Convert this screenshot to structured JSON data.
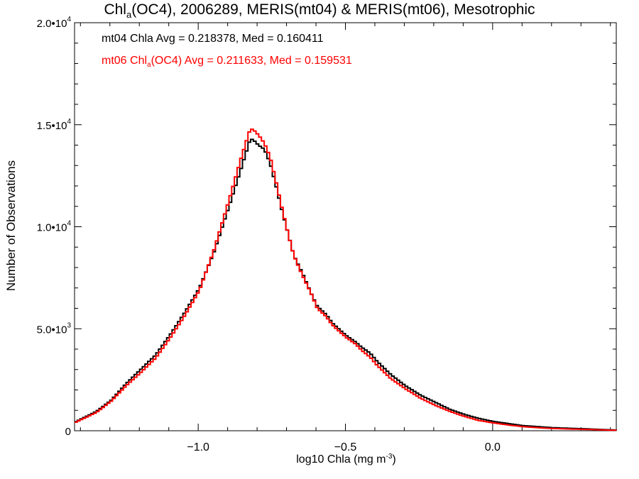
{
  "chart_data": {
    "type": "line",
    "title_parts": [
      "Chl",
      "a",
      "(OC4), 2006289, MERIS(mt04) & MERIS(mt06), Mesotrophic"
    ],
    "xlabel_parts": [
      "log10 Chla (mg m",
      "-3",
      ")"
    ],
    "ylabel": "Number of Observations",
    "xlim": [
      -1.42,
      0.42
    ],
    "ylim": [
      0,
      20000
    ],
    "xticks": [
      -1.0,
      -0.5,
      0.0
    ],
    "xtick_labels": [
      "−1.0",
      "−0.5",
      "0.0"
    ],
    "yticks": [
      0,
      5000,
      10000,
      15000,
      20000
    ],
    "ytick_labels": [
      {
        "base": "0",
        "exp": ""
      },
      {
        "base": "5.0•10",
        "exp": "3"
      },
      {
        "base": "1.0•10",
        "exp": "4"
      },
      {
        "base": "1.5•10",
        "exp": "4"
      },
      {
        "base": "2.0•10",
        "exp": "4"
      }
    ],
    "annotations": [
      {
        "text": "mt04 Chla Avg = 0.218378, Med = 0.160411",
        "color": "#000000"
      },
      {
        "parts": [
          "mt06 Chl",
          "a",
          "(OC4) Avg = 0.211633, Med = 0.159531"
        ],
        "color": "#ff0000"
      }
    ],
    "style": "histogram-step",
    "series": [
      {
        "key": "mt04",
        "color": "#000000",
        "x": [
          -1.42,
          -1.35,
          -1.3,
          -1.25,
          -1.2,
          -1.15,
          -1.1,
          -1.05,
          -1.0,
          -0.95,
          -0.9,
          -0.86,
          -0.83,
          -0.82,
          -0.8,
          -0.78,
          -0.76,
          -0.74,
          -0.72,
          -0.7,
          -0.68,
          -0.65,
          -0.62,
          -0.6,
          -0.57,
          -0.55,
          -0.52,
          -0.5,
          -0.47,
          -0.45,
          -0.42,
          -0.4,
          -0.35,
          -0.3,
          -0.25,
          -0.2,
          -0.15,
          -0.1,
          -0.05,
          0.0,
          0.05,
          0.1,
          0.15,
          0.2,
          0.3,
          0.42
        ],
        "y": [
          450,
          950,
          1500,
          2300,
          3000,
          3700,
          4700,
          5800,
          7000,
          8800,
          11000,
          12800,
          14200,
          14300,
          14000,
          13800,
          13100,
          12000,
          10800,
          9700,
          8600,
          7700,
          6700,
          6100,
          5700,
          5300,
          4900,
          4650,
          4350,
          4100,
          3800,
          3450,
          2750,
          2200,
          1750,
          1400,
          1050,
          800,
          600,
          450,
          350,
          250,
          200,
          150,
          100,
          30
        ]
      },
      {
        "key": "mt06",
        "color": "#ff0000",
        "x": [
          -1.42,
          -1.35,
          -1.3,
          -1.25,
          -1.2,
          -1.15,
          -1.1,
          -1.05,
          -1.0,
          -0.95,
          -0.9,
          -0.86,
          -0.83,
          -0.82,
          -0.8,
          -0.78,
          -0.76,
          -0.74,
          -0.72,
          -0.7,
          -0.68,
          -0.65,
          -0.62,
          -0.6,
          -0.57,
          -0.55,
          -0.52,
          -0.5,
          -0.47,
          -0.45,
          -0.42,
          -0.4,
          -0.35,
          -0.3,
          -0.25,
          -0.2,
          -0.15,
          -0.1,
          -0.05,
          0.0,
          0.05,
          0.1,
          0.15,
          0.2,
          0.3,
          0.42
        ],
        "y": [
          420,
          900,
          1450,
          2200,
          2850,
          3550,
          4550,
          5650,
          6900,
          8900,
          11300,
          13300,
          14700,
          14800,
          14500,
          14100,
          13400,
          12200,
          10900,
          9700,
          8600,
          7600,
          6700,
          6000,
          5600,
          5200,
          4800,
          4550,
          4250,
          3950,
          3600,
          3250,
          2550,
          2050,
          1600,
          1250,
          950,
          700,
          500,
          380,
          280,
          200,
          150,
          110,
          70,
          20
        ]
      }
    ]
  }
}
